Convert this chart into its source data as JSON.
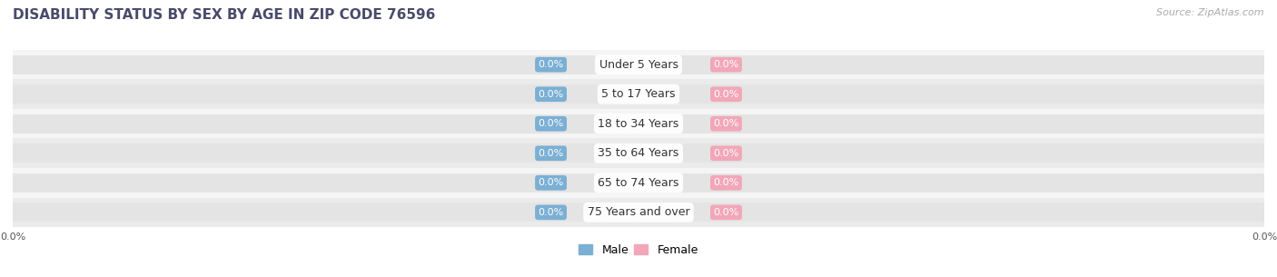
{
  "title": "DISABILITY STATUS BY SEX BY AGE IN ZIP CODE 76596",
  "source": "Source: ZipAtlas.com",
  "categories": [
    "Under 5 Years",
    "5 to 17 Years",
    "18 to 34 Years",
    "35 to 64 Years",
    "65 to 74 Years",
    "75 Years and over"
  ],
  "male_values": [
    0.0,
    0.0,
    0.0,
    0.0,
    0.0,
    0.0
  ],
  "female_values": [
    0.0,
    0.0,
    0.0,
    0.0,
    0.0,
    0.0
  ],
  "male_color": "#7bafd4",
  "female_color": "#f2a7b8",
  "bar_bg_color": "#e4e4e4",
  "row_bg_light": "#f5f5f5",
  "row_bg_dark": "#ebebeb",
  "title_color": "#4a4a6a",
  "label_color": "#333333",
  "tick_label_color": "#555555",
  "source_color": "#aaaaaa",
  "figsize": [
    14.06,
    3.05
  ],
  "dpi": 100,
  "title_fontsize": 11,
  "category_fontsize": 9,
  "value_fontsize": 8,
  "legend_fontsize": 9,
  "axis_label_fontsize": 8
}
